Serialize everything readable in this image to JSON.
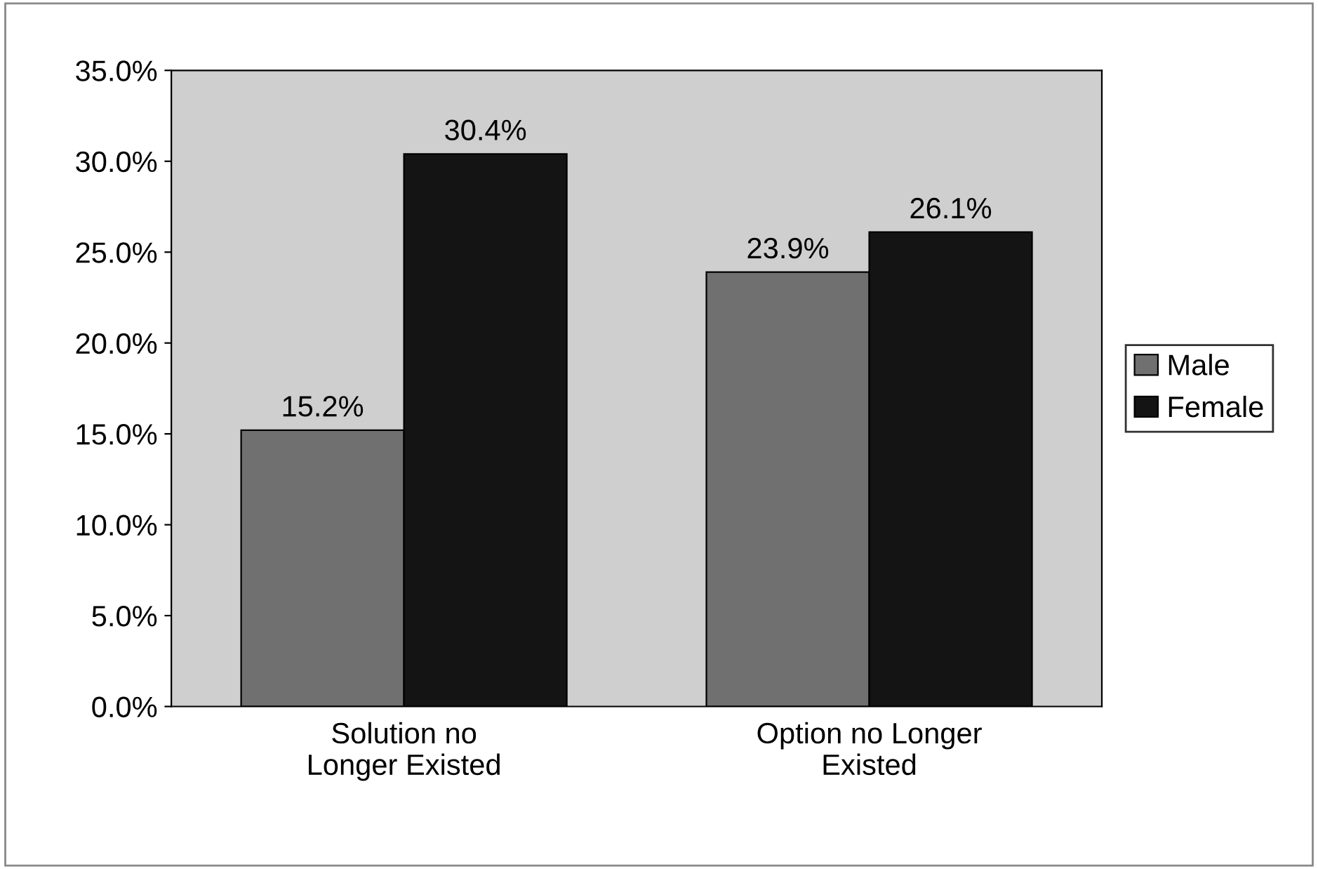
{
  "chart_data": {
    "type": "bar",
    "categories": [
      "Solution no\nLonger Existed",
      "Option no Longer\nExisted"
    ],
    "series": [
      {
        "name": "Male",
        "color": "#707070",
        "values": [
          15.2,
          23.9
        ],
        "value_labels": [
          "15.2%",
          "23.9%"
        ]
      },
      {
        "name": "Female",
        "color": "#141414",
        "values": [
          30.4,
          26.1
        ],
        "value_labels": [
          "30.4%",
          "26.1%"
        ]
      }
    ],
    "ylim": [
      0,
      35
    ],
    "yticks": [
      {
        "value": 0,
        "label": "0.0%"
      },
      {
        "value": 5,
        "label": "5.0%"
      },
      {
        "value": 10,
        "label": "10.0%"
      },
      {
        "value": 15,
        "label": "15.0%"
      },
      {
        "value": 20,
        "label": "20.0%"
      },
      {
        "value": 25,
        "label": "25.0%"
      },
      {
        "value": 30,
        "label": "30.0%"
      },
      {
        "value": 35,
        "label": "35.0%"
      }
    ],
    "grid": false,
    "legend": "right"
  }
}
